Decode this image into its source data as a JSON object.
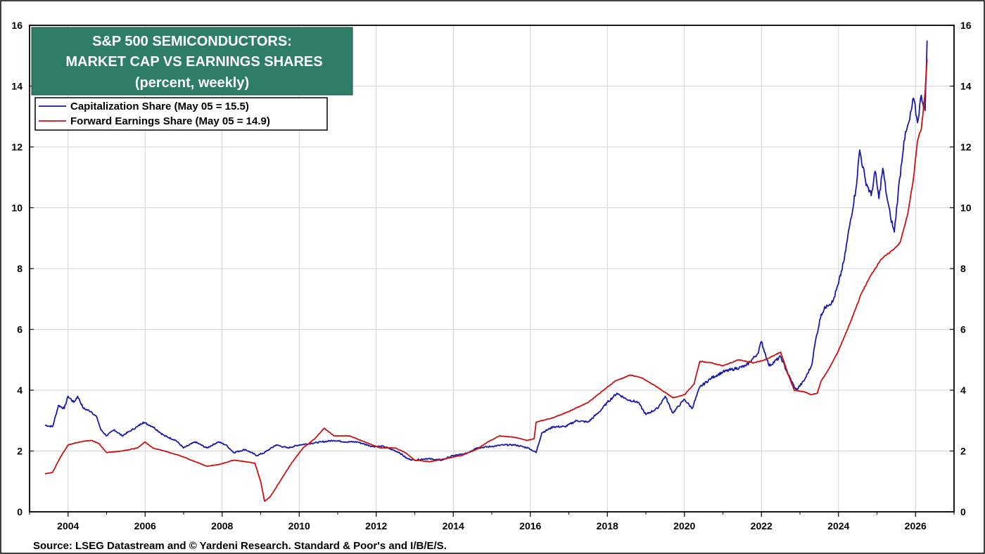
{
  "chart_data": {
    "type": "line",
    "title_lines": [
      "S&P 500 SEMICONDUCTORS:",
      "MARKET CAP VS EARNINGS SHARES",
      "(percent, weekly)"
    ],
    "source": "Source: LSEG Datastream and © Yardeni Research. Standard & Poor's and I/B/E/S.",
    "xlim": [
      2003,
      2027
    ],
    "ylim": [
      0,
      16
    ],
    "x_ticks": [
      2004,
      2006,
      2008,
      2010,
      2012,
      2014,
      2016,
      2018,
      2020,
      2022,
      2024,
      2026
    ],
    "x_tick_labels": [
      "2004",
      "2006",
      "2008",
      "2010",
      "2012",
      "2014",
      "2016",
      "2018",
      "2020",
      "2022",
      "2024",
      "2026"
    ],
    "y_ticks": [
      0,
      2,
      4,
      6,
      8,
      10,
      12,
      14,
      16
    ],
    "y_tick_labels": [
      "0",
      "2",
      "4",
      "6",
      "8",
      "10",
      "12",
      "14",
      "16"
    ],
    "grid": true,
    "legend_position": "top-left",
    "series": [
      {
        "name": "Capitalization Share  (May 05 = 15.5)",
        "color": "#1a1aaa",
        "points": [
          [
            2003.4,
            2.85
          ],
          [
            2003.6,
            2.8
          ],
          [
            2003.75,
            3.5
          ],
          [
            2003.9,
            3.4
          ],
          [
            2004.0,
            3.8
          ],
          [
            2004.15,
            3.6
          ],
          [
            2004.25,
            3.8
          ],
          [
            2004.4,
            3.4
          ],
          [
            2004.6,
            3.3
          ],
          [
            2004.75,
            3.1
          ],
          [
            2004.85,
            2.7
          ],
          [
            2005.0,
            2.5
          ],
          [
            2005.2,
            2.7
          ],
          [
            2005.4,
            2.5
          ],
          [
            2005.6,
            2.65
          ],
          [
            2005.8,
            2.8
          ],
          [
            2005.95,
            2.95
          ],
          [
            2006.2,
            2.8
          ],
          [
            2006.5,
            2.5
          ],
          [
            2006.8,
            2.35
          ],
          [
            2007.0,
            2.1
          ],
          [
            2007.3,
            2.3
          ],
          [
            2007.6,
            2.1
          ],
          [
            2007.9,
            2.3
          ],
          [
            2008.1,
            2.2
          ],
          [
            2008.3,
            1.95
          ],
          [
            2008.6,
            2.05
          ],
          [
            2008.9,
            1.85
          ],
          [
            2009.1,
            1.95
          ],
          [
            2009.4,
            2.2
          ],
          [
            2009.7,
            2.1
          ],
          [
            2010.0,
            2.2
          ],
          [
            2010.3,
            2.25
          ],
          [
            2010.6,
            2.3
          ],
          [
            2010.9,
            2.35
          ],
          [
            2011.2,
            2.3
          ],
          [
            2011.5,
            2.3
          ],
          [
            2011.9,
            2.15
          ],
          [
            2012.2,
            2.15
          ],
          [
            2012.6,
            1.95
          ],
          [
            2012.8,
            1.75
          ],
          [
            2013.0,
            1.7
          ],
          [
            2013.3,
            1.75
          ],
          [
            2013.7,
            1.7
          ],
          [
            2014.0,
            1.85
          ],
          [
            2014.3,
            1.9
          ],
          [
            2014.6,
            2.1
          ],
          [
            2015.0,
            2.15
          ],
          [
            2015.3,
            2.2
          ],
          [
            2015.6,
            2.2
          ],
          [
            2015.95,
            2.1
          ],
          [
            2016.15,
            1.95
          ],
          [
            2016.3,
            2.6
          ],
          [
            2016.6,
            2.8
          ],
          [
            2016.9,
            2.8
          ],
          [
            2017.2,
            3.0
          ],
          [
            2017.5,
            2.95
          ],
          [
            2017.8,
            3.3
          ],
          [
            2018.0,
            3.6
          ],
          [
            2018.25,
            3.9
          ],
          [
            2018.5,
            3.7
          ],
          [
            2018.8,
            3.6
          ],
          [
            2019.0,
            3.2
          ],
          [
            2019.3,
            3.4
          ],
          [
            2019.5,
            3.8
          ],
          [
            2019.7,
            3.25
          ],
          [
            2020.0,
            3.7
          ],
          [
            2020.2,
            3.4
          ],
          [
            2020.4,
            4.1
          ],
          [
            2020.7,
            4.4
          ],
          [
            2021.0,
            4.6
          ],
          [
            2021.3,
            4.7
          ],
          [
            2021.6,
            4.8
          ],
          [
            2021.9,
            5.2
          ],
          [
            2022.0,
            5.6
          ],
          [
            2022.2,
            4.8
          ],
          [
            2022.5,
            5.1
          ],
          [
            2022.7,
            4.5
          ],
          [
            2022.9,
            4.0
          ],
          [
            2023.1,
            4.3
          ],
          [
            2023.3,
            4.8
          ],
          [
            2023.4,
            5.6
          ],
          [
            2023.55,
            6.5
          ],
          [
            2023.7,
            6.8
          ],
          [
            2023.85,
            6.9
          ],
          [
            2024.0,
            7.5
          ],
          [
            2024.15,
            8.3
          ],
          [
            2024.3,
            9.5
          ],
          [
            2024.45,
            10.6
          ],
          [
            2024.55,
            11.9
          ],
          [
            2024.7,
            10.9
          ],
          [
            2024.85,
            10.4
          ],
          [
            2024.95,
            11.2
          ],
          [
            2025.05,
            10.3
          ],
          [
            2025.15,
            11.3
          ],
          [
            2025.25,
            10.4
          ],
          [
            2025.35,
            9.7
          ],
          [
            2025.45,
            9.2
          ],
          [
            2025.55,
            10.5
          ],
          [
            2025.7,
            12.2
          ],
          [
            2025.85,
            12.9
          ],
          [
            2025.95,
            13.6
          ],
          [
            2026.05,
            12.8
          ],
          [
            2026.15,
            13.7
          ],
          [
            2026.25,
            13.2
          ],
          [
            2026.3,
            15.5
          ]
        ]
      },
      {
        "name": "Forward Earnings Share (May 05 = 14.9)",
        "color": "#cc1111",
        "points": [
          [
            2003.4,
            1.25
          ],
          [
            2003.6,
            1.3
          ],
          [
            2003.8,
            1.8
          ],
          [
            2004.0,
            2.2
          ],
          [
            2004.3,
            2.3
          ],
          [
            2004.6,
            2.35
          ],
          [
            2004.8,
            2.25
          ],
          [
            2005.0,
            1.95
          ],
          [
            2005.4,
            2.0
          ],
          [
            2005.8,
            2.1
          ],
          [
            2006.0,
            2.3
          ],
          [
            2006.2,
            2.1
          ],
          [
            2006.5,
            2.0
          ],
          [
            2006.9,
            1.85
          ],
          [
            2007.2,
            1.7
          ],
          [
            2007.6,
            1.5
          ],
          [
            2007.9,
            1.55
          ],
          [
            2008.3,
            1.7
          ],
          [
            2008.6,
            1.65
          ],
          [
            2008.85,
            1.6
          ],
          [
            2009.0,
            1.0
          ],
          [
            2009.1,
            0.35
          ],
          [
            2009.25,
            0.5
          ],
          [
            2009.5,
            1.0
          ],
          [
            2009.8,
            1.6
          ],
          [
            2010.1,
            2.1
          ],
          [
            2010.4,
            2.4
          ],
          [
            2010.65,
            2.75
          ],
          [
            2010.9,
            2.5
          ],
          [
            2011.3,
            2.5
          ],
          [
            2011.7,
            2.3
          ],
          [
            2012.1,
            2.1
          ],
          [
            2012.5,
            2.1
          ],
          [
            2012.75,
            1.95
          ],
          [
            2013.0,
            1.7
          ],
          [
            2013.4,
            1.65
          ],
          [
            2013.8,
            1.75
          ],
          [
            2014.2,
            1.85
          ],
          [
            2014.6,
            2.05
          ],
          [
            2014.9,
            2.3
          ],
          [
            2015.2,
            2.5
          ],
          [
            2015.6,
            2.45
          ],
          [
            2015.9,
            2.35
          ],
          [
            2016.1,
            2.4
          ],
          [
            2016.15,
            2.95
          ],
          [
            2016.6,
            3.1
          ],
          [
            2017.0,
            3.3
          ],
          [
            2017.5,
            3.6
          ],
          [
            2017.9,
            4.0
          ],
          [
            2018.2,
            4.3
          ],
          [
            2018.6,
            4.5
          ],
          [
            2018.9,
            4.4
          ],
          [
            2019.3,
            4.1
          ],
          [
            2019.7,
            3.75
          ],
          [
            2020.0,
            3.85
          ],
          [
            2020.25,
            4.2
          ],
          [
            2020.4,
            4.95
          ],
          [
            2020.7,
            4.9
          ],
          [
            2021.0,
            4.8
          ],
          [
            2021.4,
            5.0
          ],
          [
            2021.8,
            4.9
          ],
          [
            2022.1,
            5.0
          ],
          [
            2022.5,
            5.25
          ],
          [
            2022.7,
            4.5
          ],
          [
            2022.85,
            4.0
          ],
          [
            2023.1,
            3.95
          ],
          [
            2023.3,
            3.85
          ],
          [
            2023.45,
            3.9
          ],
          [
            2023.55,
            4.3
          ],
          [
            2023.75,
            4.7
          ],
          [
            2024.0,
            5.3
          ],
          [
            2024.3,
            6.2
          ],
          [
            2024.6,
            7.2
          ],
          [
            2024.85,
            7.8
          ],
          [
            2025.1,
            8.3
          ],
          [
            2025.4,
            8.6
          ],
          [
            2025.6,
            8.85
          ],
          [
            2025.8,
            9.8
          ],
          [
            2025.95,
            11.0
          ],
          [
            2026.05,
            12.2
          ],
          [
            2026.15,
            12.6
          ],
          [
            2026.25,
            13.8
          ],
          [
            2026.3,
            14.9
          ]
        ]
      }
    ]
  }
}
